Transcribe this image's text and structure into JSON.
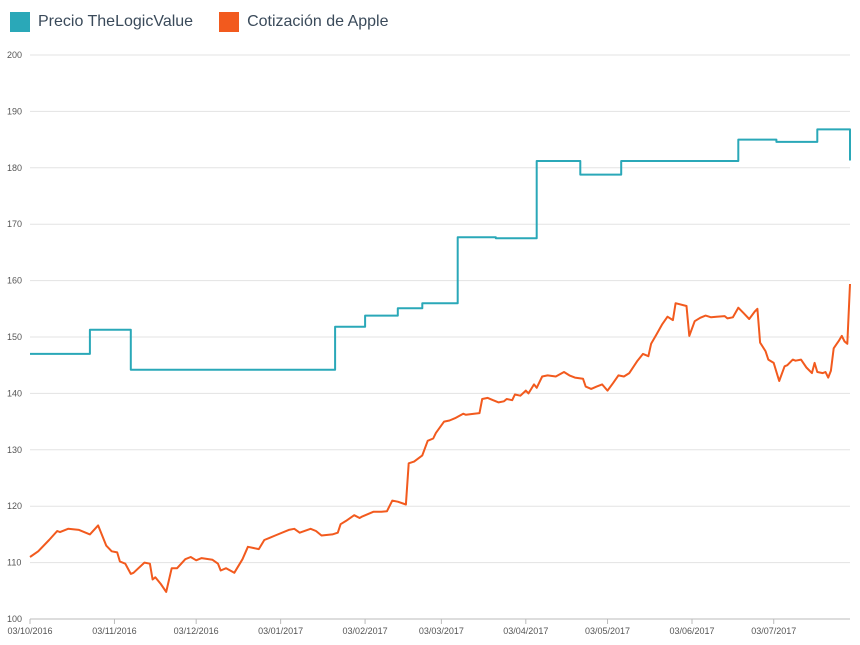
{
  "colors": {
    "tlv": "#2aa8b8",
    "apple": "#f25a1e",
    "grid": "#e3e3e3",
    "axis": "#bbbbbb"
  },
  "chart_data": {
    "type": "line",
    "title": "",
    "xlabel": "",
    "ylabel": "",
    "ylim": [
      100,
      200
    ],
    "yticks": [
      100,
      110,
      120,
      130,
      140,
      150,
      160,
      170,
      180,
      190,
      200
    ],
    "xrange": [
      "03/10/2016",
      "31/07/2017"
    ],
    "xticks": [
      "03/10/2016",
      "03/11/2016",
      "03/12/2016",
      "03/01/2017",
      "03/02/2017",
      "03/03/2017",
      "03/04/2017",
      "03/05/2017",
      "03/06/2017",
      "03/07/2017"
    ],
    "grid": true,
    "legend_position": "top-left",
    "series": [
      {
        "name": "Precio TheLogicValue",
        "color": "#2aa8b8",
        "step": true,
        "points": [
          [
            "03/10/2016",
            147
          ],
          [
            "25/10/2016",
            151.3
          ],
          [
            "09/11/2016",
            144.2
          ],
          [
            "23/01/2017",
            151.8
          ],
          [
            "03/02/2017",
            153.8
          ],
          [
            "15/02/2017",
            155.1
          ],
          [
            "24/02/2017",
            156
          ],
          [
            "09/03/2017",
            167.7
          ],
          [
            "23/03/2017",
            167.5
          ],
          [
            "07/04/2017",
            181.2
          ],
          [
            "23/04/2017",
            178.8
          ],
          [
            "08/05/2017",
            181.2
          ],
          [
            "20/06/2017",
            185
          ],
          [
            "04/07/2017",
            184.6
          ],
          [
            "19/07/2017",
            186.8
          ],
          [
            "31/07/2017",
            181.3
          ]
        ]
      },
      {
        "name": "Cotización de Apple",
        "color": "#f25a1e",
        "step": false,
        "points": [
          [
            "03/10/2016",
            111
          ],
          [
            "06/10/2016",
            112
          ],
          [
            "10/10/2016",
            114
          ],
          [
            "13/10/2016",
            115.6
          ],
          [
            "14/10/2016",
            115.4
          ],
          [
            "17/10/2016",
            116
          ],
          [
            "21/10/2016",
            115.8
          ],
          [
            "24/10/2016",
            115.2
          ],
          [
            "25/10/2016",
            115
          ],
          [
            "28/10/2016",
            116.6
          ],
          [
            "31/10/2016",
            113
          ],
          [
            "02/11/2016",
            112
          ],
          [
            "04/11/2016",
            111.8
          ],
          [
            "05/11/2016",
            110.2
          ],
          [
            "07/11/2016",
            109.8
          ],
          [
            "09/11/2016",
            108
          ],
          [
            "10/11/2016",
            108.2
          ],
          [
            "14/11/2016",
            110
          ],
          [
            "16/11/2016",
            109.8
          ],
          [
            "17/11/2016",
            107
          ],
          [
            "18/11/2016",
            107.4
          ],
          [
            "20/11/2016",
            106.2
          ],
          [
            "22/11/2016",
            104.8
          ],
          [
            "24/11/2016",
            109
          ],
          [
            "26/11/2016",
            109
          ],
          [
            "29/11/2016",
            110.6
          ],
          [
            "01/12/2016",
            111
          ],
          [
            "03/12/2016",
            110.4
          ],
          [
            "05/12/2016",
            110.8
          ],
          [
            "09/12/2016",
            110.5
          ],
          [
            "11/12/2016",
            109.8
          ],
          [
            "12/12/2016",
            108.6
          ],
          [
            "14/12/2016",
            109
          ],
          [
            "17/12/2016",
            108.2
          ],
          [
            "20/12/2016",
            110.6
          ],
          [
            "22/12/2016",
            112.8
          ],
          [
            "26/12/2016",
            112.4
          ],
          [
            "28/12/2016",
            114
          ],
          [
            "30/12/2016",
            114.4
          ],
          [
            "01/01/2017",
            114.8
          ],
          [
            "06/01/2017",
            115.8
          ],
          [
            "08/01/2017",
            116
          ],
          [
            "10/01/2017",
            115.3
          ],
          [
            "14/01/2017",
            116
          ],
          [
            "16/01/2017",
            115.6
          ],
          [
            "18/01/2017",
            114.8
          ],
          [
            "22/01/2017",
            115
          ],
          [
            "24/01/2017",
            115.3
          ],
          [
            "25/01/2017",
            116.8
          ],
          [
            "27/01/2017",
            117.4
          ],
          [
            "30/01/2017",
            118.4
          ],
          [
            "01/02/2017",
            117.9
          ],
          [
            "02/02/2017",
            118.2
          ],
          [
            "06/02/2017",
            119
          ],
          [
            "09/02/2017",
            119
          ],
          [
            "11/02/2017",
            119.1
          ],
          [
            "13/02/2017",
            121
          ],
          [
            "15/02/2017",
            120.8
          ],
          [
            "18/02/2017",
            120.3
          ],
          [
            "19/02/2017",
            127.6
          ],
          [
            "21/02/2017",
            127.9
          ],
          [
            "24/02/2017",
            129
          ],
          [
            "26/02/2017",
            131.6
          ],
          [
            "28/02/2017",
            132
          ],
          [
            "01/03/2017",
            133
          ],
          [
            "04/03/2017",
            135
          ],
          [
            "06/03/2017",
            135.2
          ],
          [
            "08/03/2017",
            135.6
          ],
          [
            "11/03/2017",
            136.4
          ],
          [
            "12/03/2017",
            136.2
          ],
          [
            "15/03/2017",
            136.4
          ],
          [
            "17/03/2017",
            136.5
          ],
          [
            "18/03/2017",
            139
          ],
          [
            "20/03/2017",
            139.2
          ],
          [
            "22/03/2017",
            138.8
          ],
          [
            "24/03/2017",
            138.4
          ],
          [
            "26/03/2017",
            138.6
          ],
          [
            "27/03/2017",
            139
          ],
          [
            "29/03/2017",
            138.8
          ],
          [
            "30/03/2017",
            139.8
          ],
          [
            "01/04/2017",
            139.6
          ],
          [
            "03/04/2017",
            140.5
          ],
          [
            "04/04/2017",
            140
          ],
          [
            "06/04/2017",
            141.6
          ],
          [
            "07/04/2017",
            141
          ],
          [
            "09/04/2017",
            143
          ],
          [
            "11/04/2017",
            143.2
          ],
          [
            "14/04/2017",
            143
          ],
          [
            "17/04/2017",
            143.8
          ],
          [
            "19/04/2017",
            143.2
          ],
          [
            "21/04/2017",
            142.8
          ],
          [
            "24/04/2017",
            142.6
          ],
          [
            "25/04/2017",
            141.2
          ],
          [
            "27/04/2017",
            140.8
          ],
          [
            "29/04/2017",
            141.2
          ],
          [
            "01/05/2017",
            141.6
          ],
          [
            "03/05/2017",
            140.5
          ],
          [
            "05/05/2017",
            141.8
          ],
          [
            "07/05/2017",
            143.2
          ],
          [
            "09/05/2017",
            143
          ],
          [
            "11/05/2017",
            143.6
          ],
          [
            "14/05/2017",
            145.8
          ],
          [
            "16/05/2017",
            147
          ],
          [
            "18/05/2017",
            146.6
          ],
          [
            "19/05/2017",
            148.8
          ],
          [
            "21/05/2017",
            150.5
          ],
          [
            "23/05/2017",
            152.2
          ],
          [
            "25/05/2017",
            153.6
          ],
          [
            "27/05/2017",
            153
          ],
          [
            "28/05/2017",
            156
          ],
          [
            "01/06/2017",
            155.5
          ],
          [
            "02/06/2017",
            150.2
          ],
          [
            "04/06/2017",
            152.8
          ],
          [
            "06/06/2017",
            153.4
          ],
          [
            "08/06/2017",
            153.8
          ],
          [
            "10/06/2017",
            153.5
          ],
          [
            "12/06/2017",
            153.6
          ],
          [
            "15/06/2017",
            153.7
          ],
          [
            "16/06/2017",
            153.3
          ],
          [
            "18/06/2017",
            153.5
          ],
          [
            "20/06/2017",
            155.2
          ],
          [
            "22/06/2017",
            154.2
          ],
          [
            "24/06/2017",
            153.2
          ],
          [
            "26/06/2017",
            154.5
          ],
          [
            "27/06/2017",
            155
          ],
          [
            "28/06/2017",
            149
          ],
          [
            "30/06/2017",
            147.5
          ],
          [
            "01/07/2017",
            146
          ],
          [
            "03/07/2017",
            145.4
          ],
          [
            "05/07/2017",
            142.2
          ],
          [
            "07/07/2017",
            144.8
          ],
          [
            "08/07/2017",
            145
          ],
          [
            "10/07/2017",
            146
          ],
          [
            "11/07/2017",
            145.8
          ],
          [
            "13/07/2017",
            146
          ],
          [
            "15/07/2017",
            144.6
          ],
          [
            "17/07/2017",
            143.6
          ],
          [
            "18/07/2017",
            145.4
          ],
          [
            "19/07/2017",
            143.8
          ],
          [
            "21/07/2017",
            143.6
          ],
          [
            "22/07/2017",
            143.8
          ],
          [
            "23/07/2017",
            142.8
          ],
          [
            "24/07/2017",
            144
          ],
          [
            "25/07/2017",
            148
          ],
          [
            "26/07/2017",
            148.7
          ],
          [
            "27/07/2017",
            149.4
          ],
          [
            "28/07/2017",
            150.2
          ],
          [
            "29/07/2017",
            149.2
          ],
          [
            "30/07/2017",
            148.8
          ],
          [
            "31/07/2017",
            159.4
          ]
        ]
      }
    ]
  }
}
